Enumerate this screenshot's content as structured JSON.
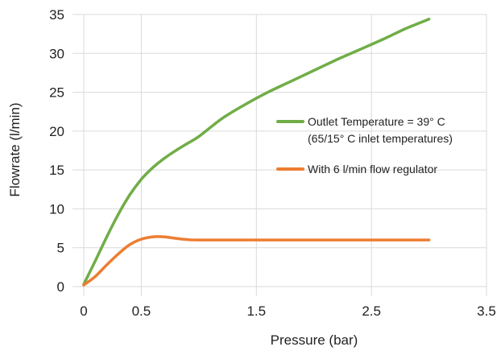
{
  "chart_data": {
    "type": "line",
    "xlabel": "Pressure (bar)",
    "ylabel": "Flowrate (l/min)",
    "xlim": [
      0,
      3.5
    ],
    "ylim": [
      0,
      35
    ],
    "x_ticks": [
      "0",
      "0.5",
      "1.5",
      "2.5",
      "3.5"
    ],
    "x_tick_values": [
      0,
      0.5,
      1.5,
      2.5,
      3.5
    ],
    "y_ticks": [
      "0",
      "5",
      "10",
      "15",
      "20",
      "25",
      "30",
      "35"
    ],
    "y_tick_values": [
      0,
      5,
      10,
      15,
      20,
      25,
      30,
      35
    ],
    "grid": true,
    "legend_position": "right",
    "series": [
      {
        "name": "Outlet Temperature = 39° C",
        "name_line2": "(65/15° C inlet temperatures)",
        "color": "#70ad47",
        "x": [
          0,
          0.1,
          0.2,
          0.3,
          0.4,
          0.5,
          0.6,
          0.7,
          0.8,
          0.9,
          1.0,
          1.2,
          1.4,
          1.6,
          1.8,
          2.0,
          2.2,
          2.4,
          2.6,
          2.8,
          3.0
        ],
        "y": [
          0.3,
          3.3,
          6.4,
          9.3,
          11.8,
          13.8,
          15.3,
          16.5,
          17.5,
          18.4,
          19.3,
          21.6,
          23.4,
          25.0,
          26.4,
          27.8,
          29.2,
          30.5,
          31.8,
          33.2,
          34.4
        ]
      },
      {
        "name": "With 6 l/min flow regulator",
        "color": "#ed7d31",
        "x": [
          0,
          0.1,
          0.2,
          0.3,
          0.4,
          0.5,
          0.6,
          0.7,
          0.8,
          0.9,
          1.0,
          1.5,
          2.0,
          2.5,
          3.0
        ],
        "y": [
          0.2,
          1.3,
          2.8,
          4.2,
          5.4,
          6.1,
          6.4,
          6.4,
          6.2,
          6.05,
          6.0,
          6.0,
          6.0,
          6.0,
          6.0
        ]
      }
    ]
  }
}
